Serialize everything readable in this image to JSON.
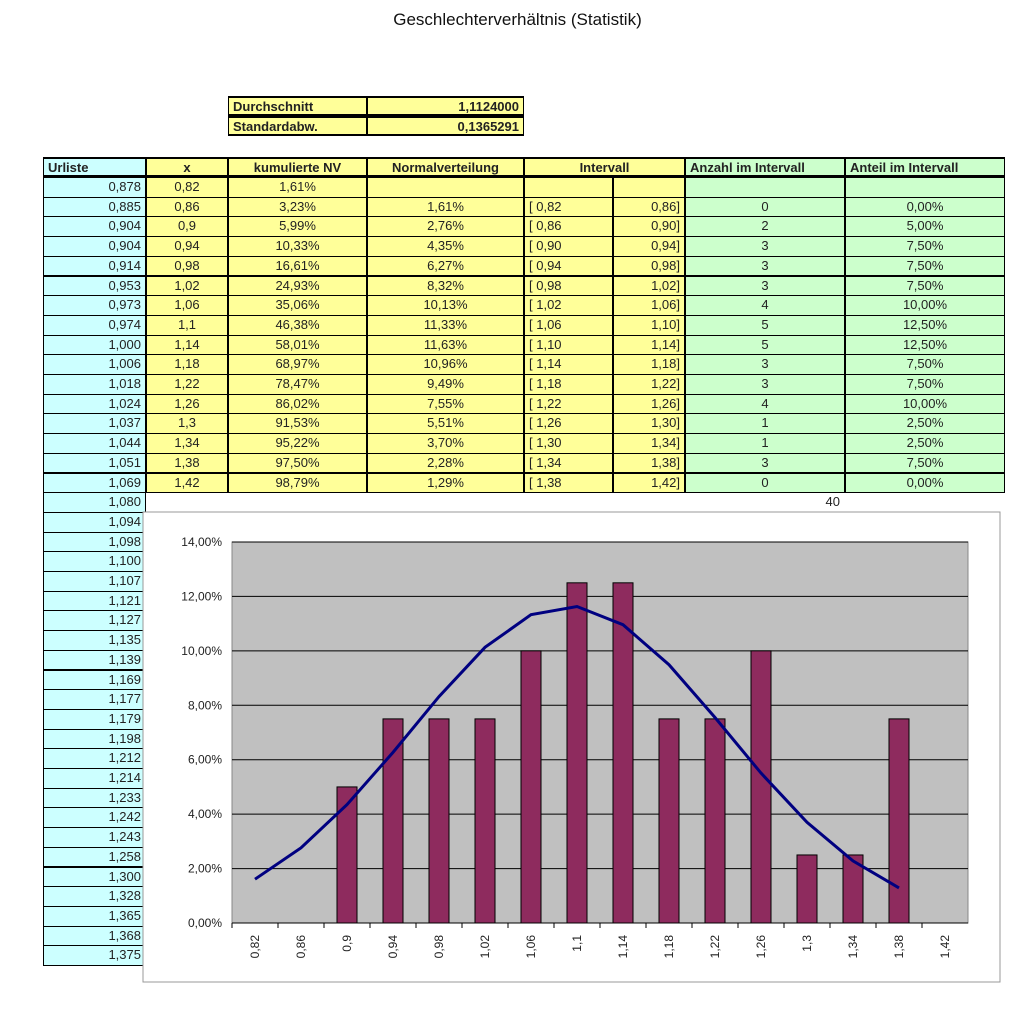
{
  "title": "Geschlechterverhältnis (Statistik)",
  "summary": {
    "rows": [
      [
        "Durchschnitt",
        "1,1124000"
      ],
      [
        "Standardabw.",
        "0,1365291"
      ]
    ]
  },
  "table": {
    "headers": [
      "Urliste",
      "x",
      "kumulierte NV",
      "Normalverteilung",
      "Intervall",
      "Anzahl im Intervall",
      "Anteil im Intervall"
    ],
    "urliste": [
      "0,878",
      "0,885",
      "0,904",
      "0,904",
      "0,914",
      "0,953",
      "0,973",
      "0,974",
      "1,000",
      "1,006",
      "1,018",
      "1,024",
      "1,037",
      "1,044",
      "1,051",
      "1,069",
      "1,080",
      "1,094",
      "1,098",
      "1,100",
      "1,107",
      "1,121",
      "1,127",
      "1,135",
      "1,139",
      "1,169",
      "1,177",
      "1,179",
      "1,198",
      "1,212",
      "1,214",
      "1,233",
      "1,242",
      "1,243",
      "1,258",
      "1,300",
      "1,328",
      "1,365",
      "1,368",
      "1,375"
    ],
    "rows": [
      [
        "0,82",
        "1,61%"
      ],
      [
        "0,86",
        "3,23%",
        "1,61%",
        "[ 0,82",
        "0,86]",
        "0",
        "0,00%"
      ],
      [
        "0,9",
        "5,99%",
        "2,76%",
        "[ 0,86",
        "0,90]",
        "2",
        "5,00%"
      ],
      [
        "0,94",
        "10,33%",
        "4,35%",
        "[ 0,90",
        "0,94]",
        "3",
        "7,50%"
      ],
      [
        "0,98",
        "16,61%",
        "6,27%",
        "[ 0,94",
        "0,98]",
        "3",
        "7,50%"
      ],
      [
        "1,02",
        "24,93%",
        "8,32%",
        "[ 0,98",
        "1,02]",
        "3",
        "7,50%"
      ],
      [
        "1,06",
        "35,06%",
        "10,13%",
        "[ 1,02",
        "1,06]",
        "4",
        "10,00%"
      ],
      [
        "1,1",
        "46,38%",
        "11,33%",
        "[ 1,06",
        "1,10]",
        "5",
        "12,50%"
      ],
      [
        "1,14",
        "58,01%",
        "11,63%",
        "[ 1,10",
        "1,14]",
        "5",
        "12,50%"
      ],
      [
        "1,18",
        "68,97%",
        "10,96%",
        "[ 1,14",
        "1,18]",
        "3",
        "7,50%"
      ],
      [
        "1,22",
        "78,47%",
        "9,49%",
        "[ 1,18",
        "1,22]",
        "3",
        "7,50%"
      ],
      [
        "1,26",
        "86,02%",
        "7,55%",
        "[ 1,22",
        "1,26]",
        "4",
        "10,00%"
      ],
      [
        "1,3",
        "91,53%",
        "5,51%",
        "[ 1,26",
        "1,30]",
        "1",
        "2,50%"
      ],
      [
        "1,34",
        "95,22%",
        "3,70%",
        "[ 1,30",
        "1,34]",
        "1",
        "2,50%"
      ],
      [
        "1,38",
        "97,50%",
        "2,28%",
        "[ 1,34",
        "1,38]",
        "3",
        "7,50%"
      ],
      [
        "1,42",
        "98,79%",
        "1,29%",
        "[ 1,38",
        "1,42]",
        "0",
        "0,00%"
      ]
    ],
    "total": "40"
  },
  "chart_data": {
    "type": "combo",
    "categories": [
      "0,82",
      "0,86",
      "0,9",
      "0,94",
      "0,98",
      "1,02",
      "1,06",
      "1,1",
      "1,14",
      "1,18",
      "1,22",
      "1,26",
      "1,3",
      "1,34",
      "1,38",
      "1,42"
    ],
    "series": [
      {
        "type": "bar",
        "color": "#8e2b5e",
        "values": [
          null,
          0,
          5,
          7.5,
          7.5,
          7.5,
          10,
          12.5,
          12.5,
          7.5,
          7.5,
          10,
          2.5,
          2.5,
          7.5,
          0
        ]
      },
      {
        "type": "line",
        "color": "#000080",
        "values": [
          1.61,
          2.76,
          4.35,
          6.27,
          8.32,
          10.13,
          11.33,
          11.63,
          10.96,
          9.49,
          7.55,
          5.51,
          3.7,
          2.28,
          1.29,
          null
        ]
      }
    ],
    "ylim": [
      0,
      14
    ],
    "yticks": [
      {
        "value": 0,
        "label": "0,00%"
      },
      {
        "value": 2,
        "label": "2,00%"
      },
      {
        "value": 4,
        "label": "4,00%"
      },
      {
        "value": 6,
        "label": "6,00%"
      },
      {
        "value": 8,
        "label": "8,00%"
      },
      {
        "value": 10,
        "label": "10,00%"
      },
      {
        "value": 12,
        "label": "12,00%"
      },
      {
        "value": 14,
        "label": "14,00%"
      }
    ],
    "grid": true
  }
}
